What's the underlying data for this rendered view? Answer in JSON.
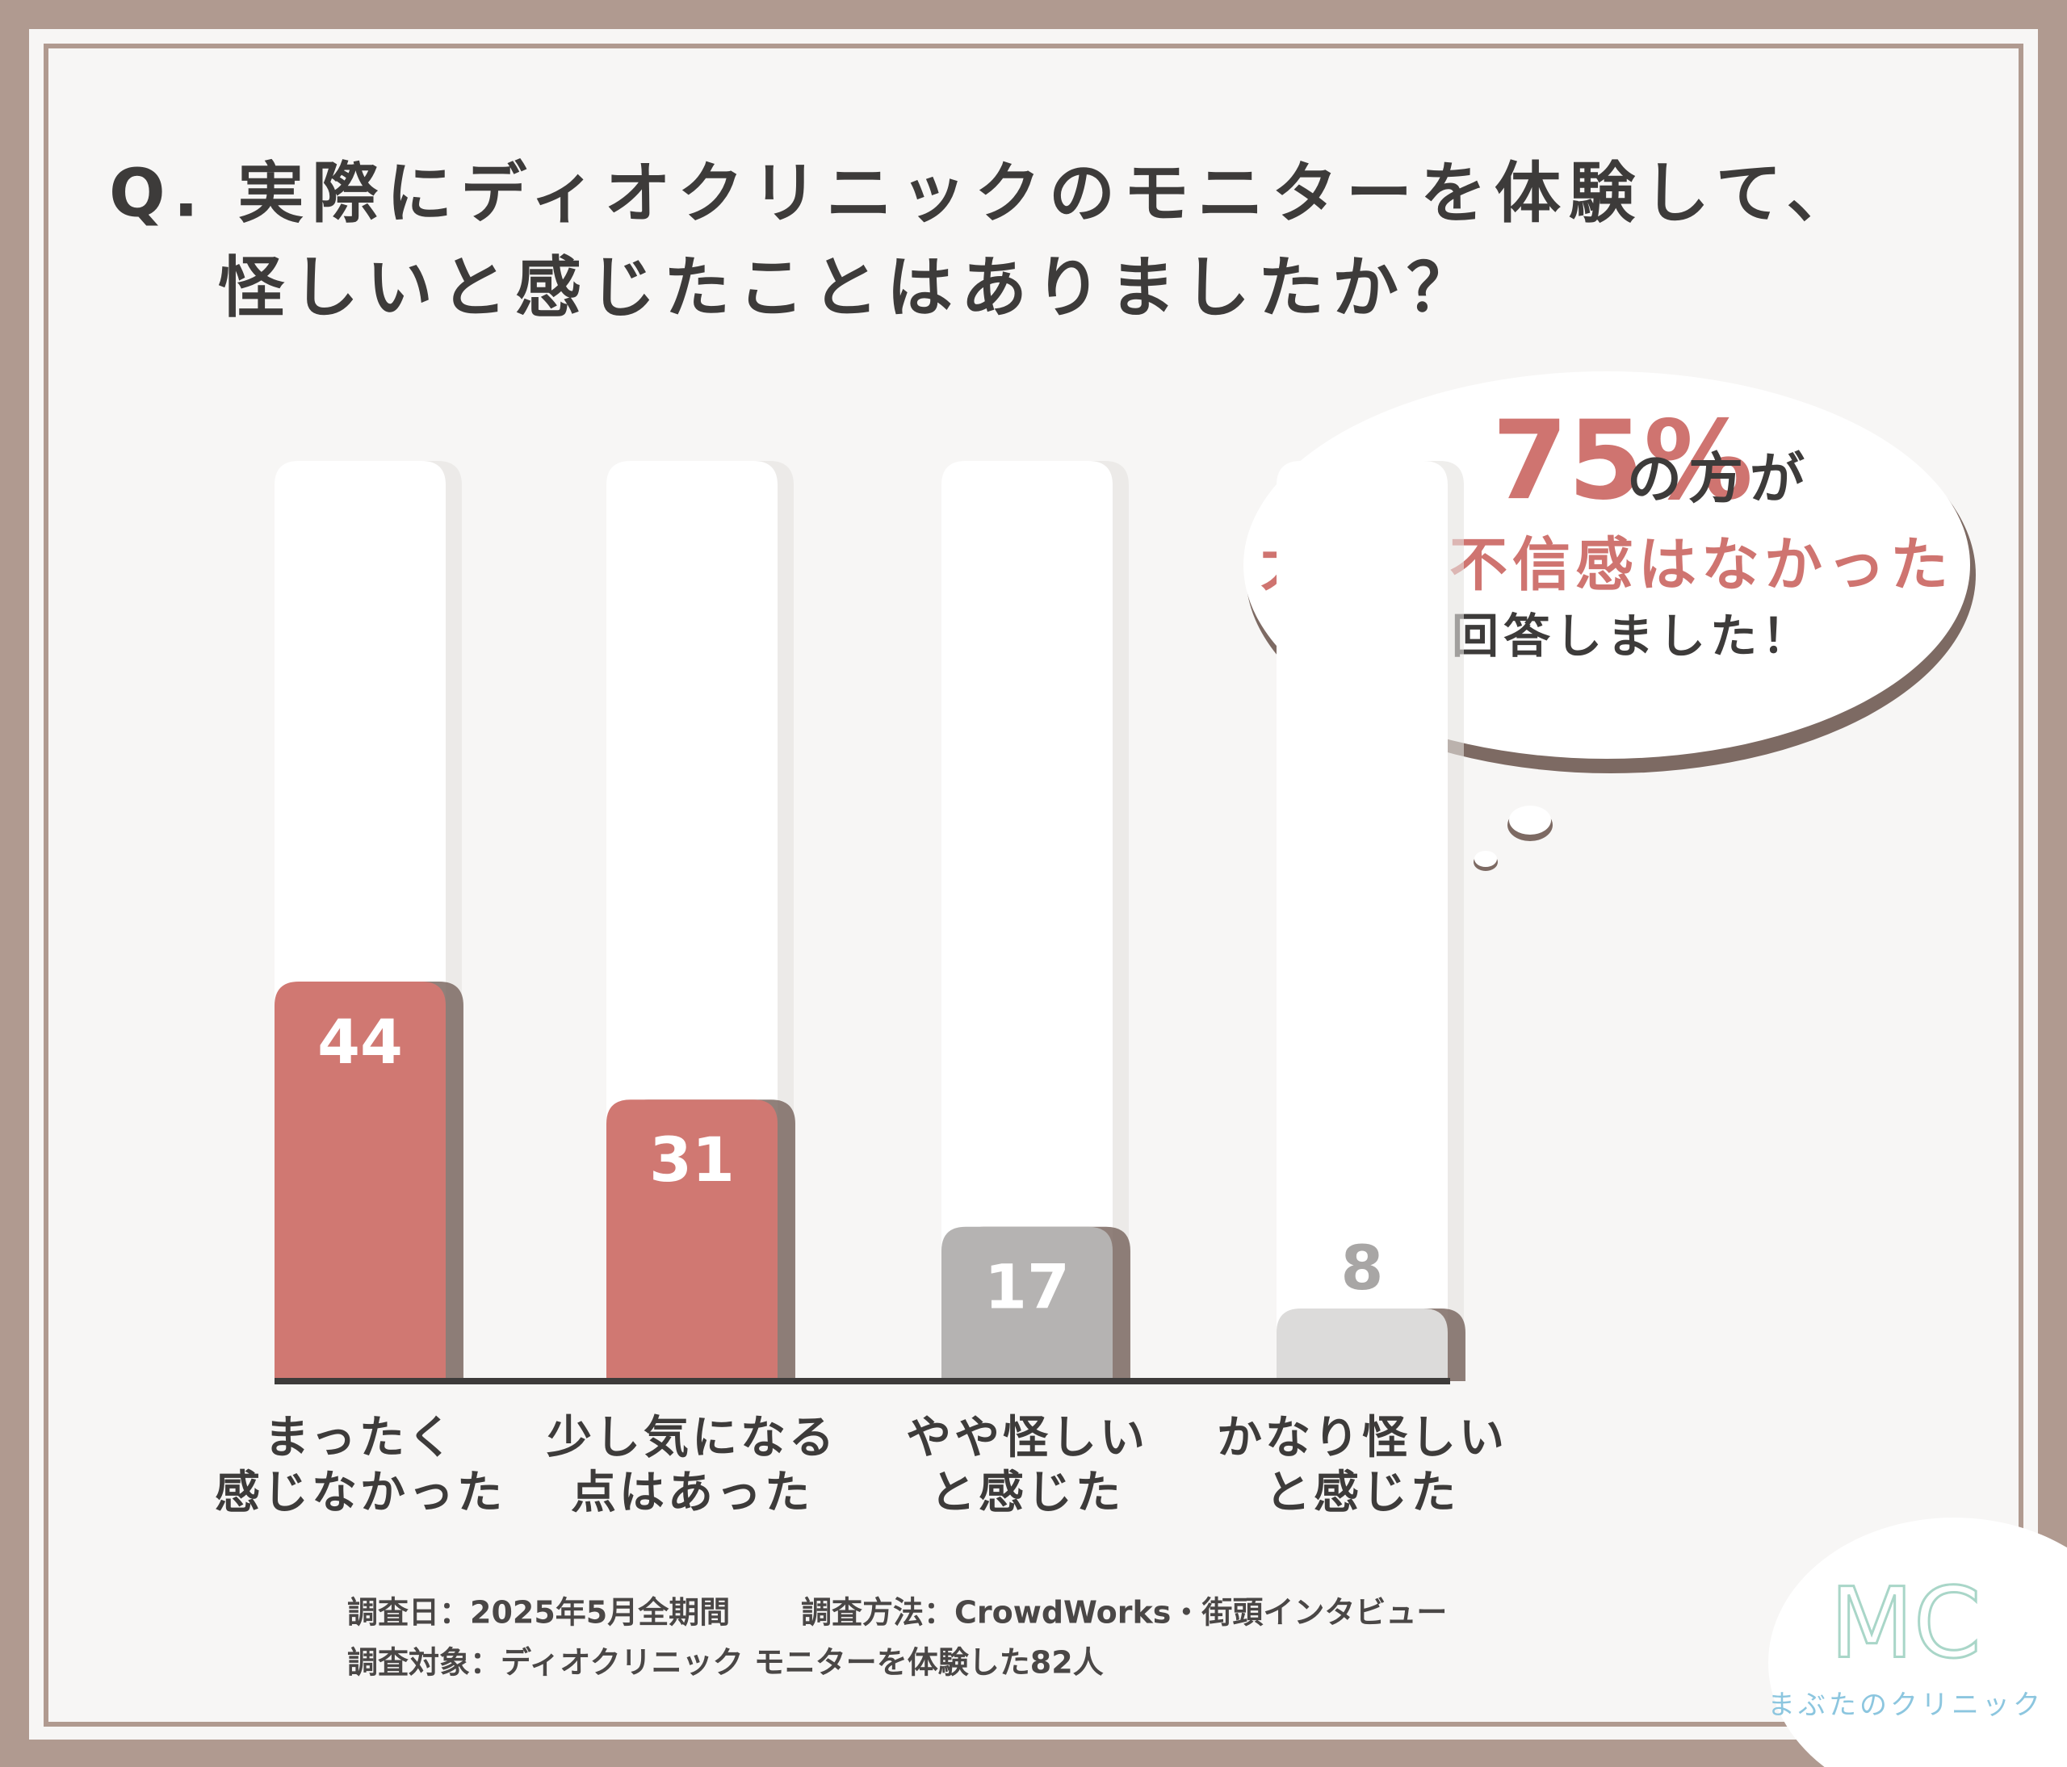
{
  "chart_data": {
    "type": "bar",
    "title": [
      "Q. 実際にディオクリニックのモニターを体験して、",
      "怪しいと感じたことはありましたか？"
    ],
    "categories": [
      [
        "まったく",
        "感じなかった"
      ],
      [
        "少し気になる",
        "点はあった"
      ],
      [
        "やや怪しい",
        "と感じた"
      ],
      [
        "かなり怪しい",
        "と感じた"
      ]
    ],
    "values": [
      44,
      31,
      17,
      8
    ],
    "colors": [
      "#d07872",
      "#d07872",
      "#b5b3b2",
      "#dcdbda"
    ],
    "annotation": {
      "highlight": "75%",
      "text": "の方が",
      "line2": "大きな不信感はなかった",
      "line3": "と回答しました！"
    },
    "notes": [
      "調査日：2025年5月全期間",
      "調査方法：CrowdWorks・街頭インタビュー",
      "調査対象：ディオクリニック モニターを体験した82人"
    ],
    "logo": {
      "mark": "MC",
      "name": "まぶたのクリニック"
    }
  }
}
